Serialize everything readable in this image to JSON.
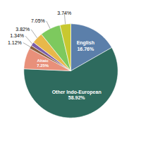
{
  "chart_data": {
    "type": "pie",
    "categories": [
      "English",
      "Other Indo-European",
      "Altaic",
      null,
      null,
      null,
      null,
      null
    ],
    "values": [
      16.76,
      58.92,
      7.25,
      1.12,
      1.34,
      3.82,
      7.05,
      3.74
    ],
    "value_labels": [
      "16.76%",
      "58.92%",
      "7.25%",
      "1.12%",
      "1.34%",
      "3.82%",
      "7.05%",
      "3.74%"
    ],
    "colors": [
      "#5b7faa",
      "#2e6b5e",
      "#e8907a",
      "#8b5e3c",
      "#7b5ea7",
      "#e8b84b",
      "#7dc95e",
      "#c8c830"
    ],
    "data_labels": true
  }
}
